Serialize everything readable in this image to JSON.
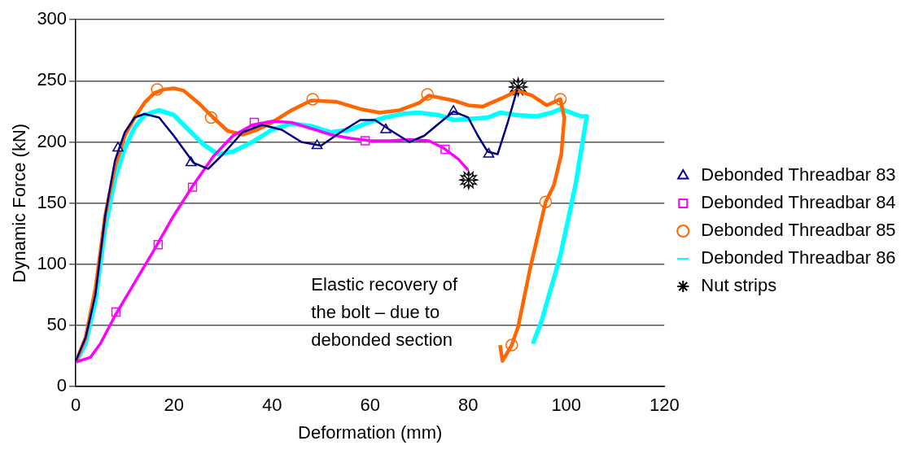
{
  "chart_data": {
    "type": "line",
    "xlabel": "Deformation (mm)",
    "ylabel": "Dynamic Force (kN)",
    "xlim": [
      0,
      120
    ],
    "xticks": [
      0,
      20,
      40,
      60,
      80,
      100,
      120
    ],
    "ylim": [
      0,
      300
    ],
    "yticks": [
      0,
      50,
      100,
      150,
      200,
      250,
      300
    ],
    "grid": "y",
    "legend": "right",
    "line_style": "solid",
    "annotations": [
      "Elastic recovery of the bolt – due to debonded section"
    ],
    "series": [
      {
        "name": "Debonded Threadbar 83",
        "color": "#000080",
        "x": [
          0,
          2,
          4,
          6,
          8,
          10,
          12,
          14,
          17,
          20,
          24,
          27,
          30,
          34,
          38,
          42,
          46,
          50,
          54,
          58,
          61,
          64,
          68,
          71,
          74,
          77,
          80,
          82,
          84,
          86,
          88,
          90
        ],
        "values": [
          21,
          40,
          75,
          140,
          185,
          208,
          220,
          223,
          220,
          205,
          183,
          178,
          190,
          208,
          214,
          210,
          200,
          197,
          208,
          218,
          218,
          210,
          200,
          205,
          215,
          225,
          220,
          205,
          192,
          190,
          215,
          243
        ]
      },
      {
        "type": "scatter",
        "color": "#000080",
        "marker": "triangle",
        "x": [
          8.6,
          23.5,
          49.2,
          63.2,
          77,
          84.2
        ],
        "values": [
          195,
          183,
          197,
          210,
          225,
          190
        ]
      },
      {
        "name": "Debonded Threadbar 84",
        "color": "#ff00ff",
        "x": [
          0,
          3,
          5,
          8,
          12,
          16,
          20,
          24,
          28,
          32,
          36,
          40,
          44,
          48,
          52,
          56,
          60,
          64,
          68,
          72,
          75,
          78,
          80
        ],
        "values": [
          20,
          24,
          35,
          58,
          85,
          112,
          140,
          165,
          188,
          205,
          214,
          217,
          216,
          211,
          206,
          203,
          201,
          201,
          202,
          201,
          195,
          186,
          177
        ]
      },
      {
        "type": "scatter",
        "color": "#ff00ff",
        "marker": "square",
        "x": [
          8.2,
          16.8,
          23.8,
          36.4,
          59,
          75.3
        ],
        "values": [
          61,
          116,
          163,
          216,
          201,
          194
        ]
      },
      {
        "name": "Debonded Threadbar 85",
        "color": "#ff6600",
        "x": [
          0,
          2,
          4,
          6,
          8,
          10,
          12,
          14,
          16,
          18,
          20,
          22,
          25,
          28,
          31,
          34,
          37,
          40,
          44,
          48,
          53,
          58,
          62,
          66,
          70,
          72,
          77,
          80,
          83,
          87,
          90,
          93,
          96,
          98.8,
          99.6,
          99,
          97.5,
          95.8,
          92.6,
          90.2,
          88.9,
          87,
          86.5
        ],
        "values": [
          20,
          40,
          80,
          140,
          180,
          205,
          220,
          232,
          240,
          243,
          244,
          242,
          232,
          220,
          209,
          206,
          210,
          216,
          226,
          234,
          233,
          227,
          224,
          226,
          232,
          238,
          234,
          230,
          229,
          236,
          242,
          238,
          230,
          235,
          220,
          190,
          165,
          151,
          96,
          49,
          34,
          21,
          34
        ]
      },
      {
        "type": "scatter",
        "color": "#ff6600",
        "marker": "circle",
        "x": [
          16.6,
          27.6,
          48.3,
          71.7,
          98.8,
          95.8,
          88.9
        ],
        "values": [
          243,
          220,
          235,
          239,
          235,
          151,
          34
        ]
      },
      {
        "name": "Debonded Threadbar 86",
        "color": "#00ffff",
        "marker": "none",
        "x": [
          0,
          2,
          4,
          6,
          8,
          10,
          12,
          14,
          17,
          20,
          23,
          26,
          29,
          32,
          36,
          40,
          44,
          48,
          52,
          56,
          59,
          63,
          66.5,
          70,
          74,
          77,
          81,
          84,
          86.5,
          90,
          94,
          97,
          98.8,
          101,
          103,
          104.2,
          103.4,
          101.9,
          98.8,
          95,
          93.2
        ],
        "values": [
          20,
          35,
          70,
          130,
          170,
          195,
          212,
          222,
          226,
          222,
          210,
          198,
          190,
          192,
          200,
          210,
          215,
          213,
          208,
          210,
          215,
          220,
          223,
          224,
          222,
          218,
          219,
          220,
          224,
          222,
          221,
          224,
          227,
          224,
          221,
          221,
          202,
          165,
          107,
          54,
          35
        ]
      },
      {
        "name": "Nut strips",
        "type": "scatter",
        "color": "#000000",
        "marker": "star",
        "x": [
          80.1,
          90.2
        ],
        "values": [
          169,
          245
        ]
      }
    ]
  }
}
